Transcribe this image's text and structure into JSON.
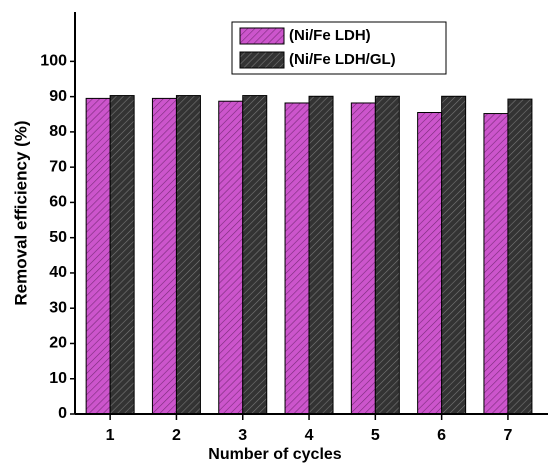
{
  "chart_data": {
    "type": "bar",
    "x_label": "Number of cycles",
    "y_label": "Removal efficiency (%)",
    "categories": [
      "1",
      "2",
      "3",
      "4",
      "5",
      "6",
      "7"
    ],
    "series": [
      {
        "name": "(Ni/Fe LDH)",
        "color": "#cc55cc",
        "values": [
          89.5,
          89.5,
          88.7,
          88.2,
          88.2,
          85.5,
          85.2
        ]
      },
      {
        "name": "(Ni/Fe LDH/GL)",
        "color": "#333333",
        "values": [
          90.3,
          90.3,
          90.3,
          90.1,
          90.1,
          90.1,
          89.3
        ]
      }
    ],
    "ylim": [
      0,
      114
    ],
    "yticks": [
      0,
      10,
      20,
      30,
      40,
      50,
      60,
      70,
      80,
      90,
      100
    ],
    "legend": "top"
  }
}
